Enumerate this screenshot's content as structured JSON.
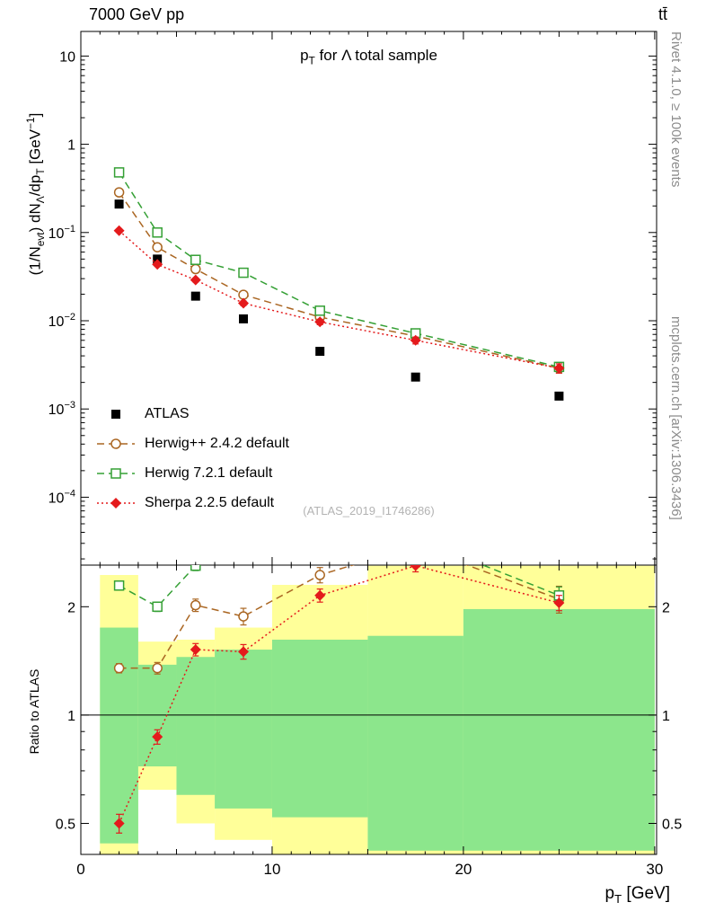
{
  "header": {
    "top_left": "7000 GeV pp",
    "top_right": "tt̄"
  },
  "side_labels": {
    "right_top": "Rivet 4.1.0, ≥ 100k events",
    "right_bottom": "mcplots.cern.ch [arXiv:1306.3436]"
  },
  "watermark": "(ATLAS_2019_I1746286)",
  "chart_data": {
    "type": "line",
    "title_html": "p<sub>T</sub> for Λ total sample",
    "xlabel_html": "p<sub>T</sub> [GeV]",
    "ylabel_html": "(1/N<sub>evt</sub>) dN<sub>Λ</sub>/dp<sub>T</sub> [GeV<sup>−1</sup>]",
    "ratio_ylabel": "Ratio to ATLAS",
    "x": [
      2,
      4,
      6,
      8.5,
      12.5,
      17.5,
      25
    ],
    "xlim": [
      0,
      30.1
    ],
    "x_major_ticks": [
      0,
      10,
      20,
      30
    ],
    "ylim_main": [
      1.7e-05,
      19
    ],
    "y_decades_labeled": [
      1,
      0,
      -1,
      -2,
      -3,
      -4
    ],
    "ylim_ratio": [
      0.41,
      2.61
    ],
    "ratio_ticks_labeled": [
      0.5,
      1,
      2
    ],
    "ratio_minor_ticks": [
      0.6,
      0.7,
      0.8,
      0.9
    ],
    "series": [
      {
        "name": "ATLAS",
        "color": "#000000",
        "marker": "square-filled",
        "line": "none",
        "y": [
          0.21,
          0.05,
          0.019,
          0.0105,
          0.0045,
          0.0023,
          0.0014
        ]
      },
      {
        "name": "Herwig++ 2.4.2 default",
        "color": "#aa6622",
        "marker": "circle-open",
        "line": "dashed",
        "y": [
          0.285,
          0.068,
          0.0385,
          0.0197,
          0.011,
          0.0067,
          0.0029
        ],
        "yerr_rel": [
          0.03,
          0.04,
          0.05,
          0.06,
          0.07,
          0.09,
          0.12
        ],
        "ratio": [
          1.35,
          1.35,
          2.02,
          1.88,
          2.45,
          2.95,
          2.1
        ],
        "ratio_err": [
          0.04,
          0.05,
          0.08,
          0.1,
          0.12,
          0.15,
          0.18
        ]
      },
      {
        "name": "Herwig 7.2.1 default",
        "color": "#35a035",
        "marker": "square-open",
        "line": "dashed",
        "y": [
          0.48,
          0.1,
          0.049,
          0.035,
          0.013,
          0.0072,
          0.003
        ],
        "yerr_rel": [
          0.03,
          0.04,
          0.05,
          0.06,
          0.07,
          0.09,
          0.12
        ],
        "ratio": [
          2.29,
          2.0,
          2.6,
          3.3,
          2.9,
          3.1,
          2.15
        ],
        "ratio_err": [
          0.05,
          0.06,
          0.08,
          0.1,
          0.12,
          0.14,
          0.12
        ]
      },
      {
        "name": "Sherpa 2.2.5 default",
        "color": "#e41a1c",
        "marker": "diamond-filled",
        "line": "dotted",
        "y": [
          0.105,
          0.0435,
          0.029,
          0.0158,
          0.0097,
          0.006,
          0.0029
        ],
        "yerr_rel": [
          0.03,
          0.04,
          0.05,
          0.06,
          0.07,
          0.09,
          0.12
        ],
        "ratio": [
          0.5,
          0.87,
          1.52,
          1.5,
          2.15,
          2.6,
          2.05
        ],
        "ratio_err": [
          0.03,
          0.04,
          0.06,
          0.07,
          0.09,
          0.1,
          0.1
        ]
      }
    ],
    "bands": [
      {
        "x": [
          1,
          3
        ],
        "yellow": [
          0.4,
          2.45
        ],
        "green": [
          0.44,
          1.75
        ]
      },
      {
        "x": [
          3,
          5
        ],
        "yellow": [
          0.62,
          1.6
        ],
        "green": [
          0.72,
          1.38
        ]
      },
      {
        "x": [
          5,
          7
        ],
        "yellow": [
          0.5,
          1.62
        ],
        "green": [
          0.6,
          1.45
        ]
      },
      {
        "x": [
          7,
          10
        ],
        "yellow": [
          0.45,
          1.75
        ],
        "green": [
          0.55,
          1.52
        ]
      },
      {
        "x": [
          10,
          15
        ],
        "yellow": [
          0.4,
          2.3
        ],
        "green": [
          0.52,
          1.62
        ]
      },
      {
        "x": [
          15,
          20
        ],
        "yellow": [
          0.4,
          2.6
        ],
        "green": [
          0.42,
          1.66
        ]
      },
      {
        "x": [
          20,
          30
        ],
        "yellow": [
          0.4,
          2.6
        ],
        "green": [
          0.42,
          1.97
        ]
      }
    ],
    "colors": {
      "yellow_band": "#ffff99",
      "green_band": "#8ce68c",
      "reference_line": "#000000"
    }
  }
}
